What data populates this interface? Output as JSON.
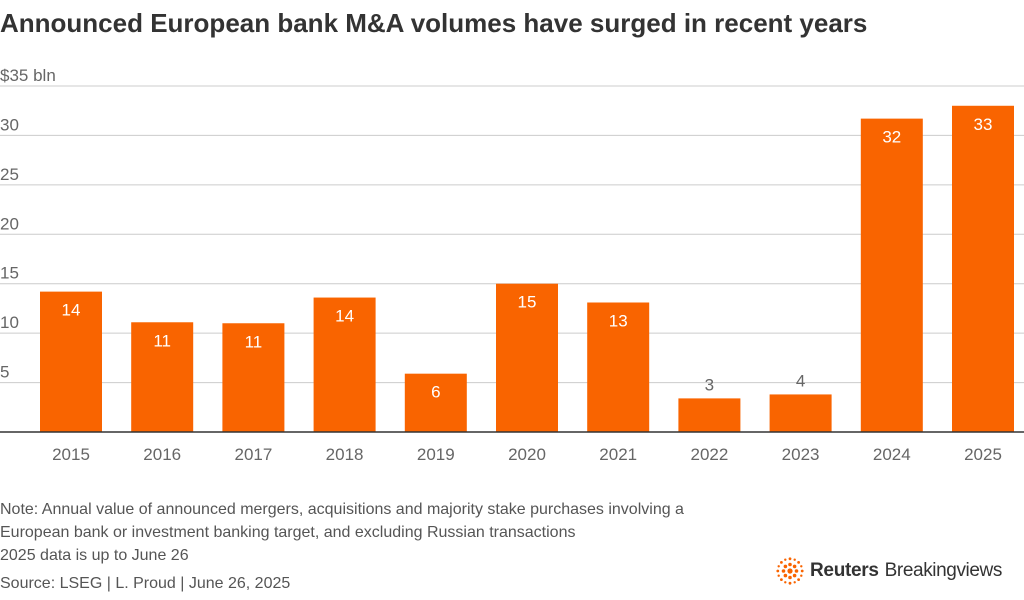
{
  "title": "Announced European bank M&A volumes have surged in recent years",
  "note_lines": [
    "Note: Annual value of announced mergers, acquisitions and majority stake purchases involving a",
    "European bank or investment banking target, and excluding Russian transactions",
    "2025 data is up to June 26"
  ],
  "source": "Source: LSEG | L. Proud | June 26, 2025",
  "logo": {
    "brand": "Reuters",
    "product": "Breakingviews",
    "icon": "reuters-dot-logo-icon"
  },
  "colors": {
    "bar": "#F96400",
    "grid": "#cccccc",
    "axis_text": "#666666",
    "label_inside": "#ffffff",
    "label_outside": "#666666"
  },
  "chart_data": {
    "type": "bar",
    "categories": [
      "2015",
      "2016",
      "2017",
      "2018",
      "2019",
      "2020",
      "2021",
      "2022",
      "2023",
      "2024",
      "2025"
    ],
    "values": [
      14.2,
      11.1,
      11.0,
      13.6,
      5.9,
      15.0,
      13.1,
      3.4,
      3.8,
      31.7,
      33.0
    ],
    "data_labels": [
      "14",
      "11",
      "11",
      "14",
      "6",
      "15",
      "13",
      "3",
      "4",
      "32",
      "33"
    ],
    "yticks": [
      "5",
      "10",
      "15",
      "20",
      "25",
      "30",
      "$35 bln"
    ],
    "ytick_values": [
      5,
      10,
      15,
      20,
      25,
      30,
      35
    ],
    "ylim": [
      0,
      35
    ],
    "grid": true,
    "xlabel": "",
    "ylabel": ""
  }
}
